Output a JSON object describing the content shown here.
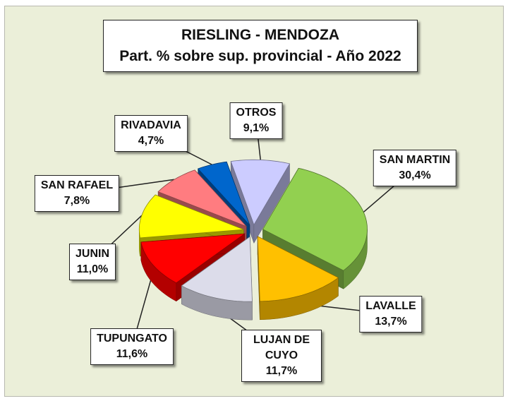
{
  "chart_data": {
    "type": "pie",
    "title": "RIESLING - MENDOZA",
    "subtitle": "Part. % sobre sup. provincial - Año 2022",
    "categories": [
      "SAN MARTIN",
      "LAVALLE",
      "LUJAN DE CUYO",
      "TUPUNGATO",
      "JUNIN",
      "SAN RAFAEL",
      "RIVADAVIA",
      "OTROS"
    ],
    "values": [
      30.4,
      13.7,
      11.7,
      11.6,
      11.0,
      7.8,
      4.7,
      9.1
    ],
    "value_labels": [
      "30,4%",
      "13,7%",
      "11,7%",
      "11,6%",
      "11,0%",
      "7,8%",
      "4,7%",
      "9,1%"
    ],
    "colors": [
      "#92d050",
      "#ffc000",
      "#dcdcea",
      "#ff0000",
      "#ffff00",
      "#ff7c80",
      "#0066cc",
      "#ccccff"
    ]
  }
}
